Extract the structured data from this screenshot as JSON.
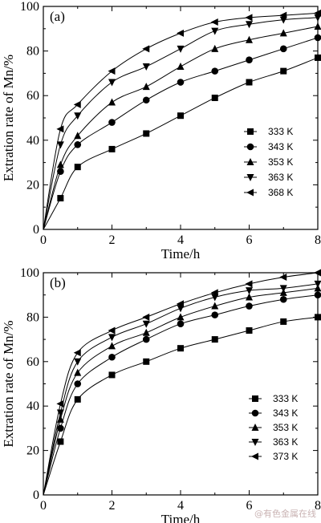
{
  "chart_data": [
    {
      "type": "line",
      "panel_label": "(a)",
      "xlabel": "Time/h",
      "ylabel": "Extration rate of Mn/%",
      "xlim": [
        0,
        8
      ],
      "ylim": [
        0,
        100
      ],
      "xticks": [
        0,
        2,
        4,
        6,
        8
      ],
      "yticks": [
        0,
        20,
        40,
        60,
        80,
        100
      ],
      "legend_position": "lower-right",
      "series": [
        {
          "name": "333 K",
          "marker": "square",
          "x": [
            0,
            0.5,
            1,
            2,
            3,
            4,
            5,
            6,
            7,
            8
          ],
          "y": [
            0,
            14,
            28,
            36,
            43,
            51,
            59,
            66,
            71,
            77
          ]
        },
        {
          "name": "343 K",
          "marker": "circle",
          "x": [
            0,
            0.5,
            1,
            2,
            3,
            4,
            5,
            6,
            7,
            8
          ],
          "y": [
            0,
            26,
            38,
            48,
            58,
            66,
            71,
            76,
            81,
            86
          ]
        },
        {
          "name": "353 K",
          "marker": "triangle-up",
          "x": [
            0,
            0.5,
            1,
            2,
            3,
            4,
            5,
            6,
            7,
            8
          ],
          "y": [
            0,
            29,
            42,
            57,
            64,
            73,
            81,
            85,
            88,
            91
          ]
        },
        {
          "name": "363 K",
          "marker": "triangle-down",
          "x": [
            0,
            0.5,
            1,
            2,
            3,
            4,
            5,
            6,
            7,
            8
          ],
          "y": [
            0,
            38,
            51,
            66,
            73,
            81,
            89,
            92,
            94,
            95
          ]
        },
        {
          "name": "368 K",
          "marker": "triangle-left",
          "x": [
            0,
            0.5,
            1,
            2,
            3,
            4,
            5,
            6,
            7,
            8
          ],
          "y": [
            0,
            45,
            56,
            71,
            81,
            88,
            93,
            95,
            96,
            97
          ]
        }
      ]
    },
    {
      "type": "line",
      "panel_label": "(b)",
      "xlabel": "Time/h",
      "ylabel": "Extration rate of Mn/%",
      "xlim": [
        0,
        8
      ],
      "ylim": [
        0,
        100
      ],
      "xticks": [
        0,
        2,
        4,
        6,
        8
      ],
      "yticks": [
        0,
        20,
        40,
        60,
        80,
        100
      ],
      "legend_position": "lower-right",
      "series": [
        {
          "name": "333 K",
          "marker": "square",
          "x": [
            0,
            0.5,
            1,
            2,
            3,
            4,
            5,
            6,
            7,
            8
          ],
          "y": [
            0,
            24,
            43,
            54,
            60,
            66,
            70,
            74,
            78,
            80
          ]
        },
        {
          "name": "343 K",
          "marker": "circle",
          "x": [
            0,
            0.5,
            1,
            2,
            3,
            4,
            5,
            6,
            7,
            8
          ],
          "y": [
            0,
            30,
            50,
            62,
            70,
            77,
            81,
            85,
            88,
            90
          ]
        },
        {
          "name": "353 K",
          "marker": "triangle-up",
          "x": [
            0,
            0.5,
            1,
            2,
            3,
            4,
            5,
            6,
            7,
            8
          ],
          "y": [
            0,
            34,
            55,
            67,
            73,
            80,
            85,
            89,
            91,
            93
          ]
        },
        {
          "name": "363 K",
          "marker": "triangle-down",
          "x": [
            0,
            0.5,
            1,
            2,
            3,
            4,
            5,
            6,
            7,
            8
          ],
          "y": [
            0,
            37,
            60,
            71,
            77,
            84,
            89,
            92,
            93,
            95
          ]
        },
        {
          "name": "373 K",
          "marker": "triangle-left",
          "x": [
            0,
            0.5,
            1,
            2,
            3,
            4,
            5,
            6,
            7,
            8
          ],
          "y": [
            0,
            41,
            64,
            74,
            80,
            86,
            91,
            95,
            98,
            100
          ]
        }
      ]
    }
  ],
  "watermark": "@有色金属在线"
}
